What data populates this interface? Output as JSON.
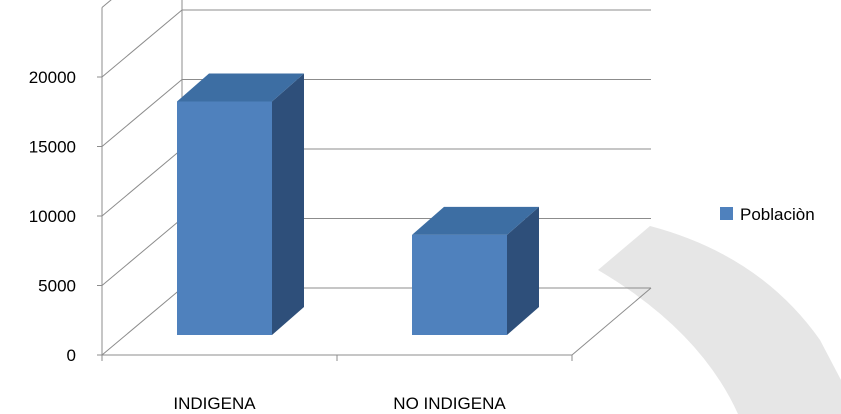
{
  "chart_data": {
    "type": "bar",
    "title": "",
    "xlabel": "",
    "ylabel": "",
    "categories": [
      "INDIGENA",
      "NO INDIGENA"
    ],
    "series": [
      {
        "name": "Poblaciòn",
        "values": [
          16800,
          7200
        ]
      }
    ],
    "ylim": [
      0,
      25000
    ],
    "yticks": [
      0,
      5000,
      10000,
      15000,
      20000
    ],
    "grid": true,
    "three_d": true,
    "legend": "right"
  },
  "colors": {
    "bar_front": "#4f81bd",
    "bar_top": "#3d6ea3",
    "bar_side": "#2e4f7a",
    "gridline": "#8c8c8c",
    "watermark": "#e6e6e6"
  }
}
